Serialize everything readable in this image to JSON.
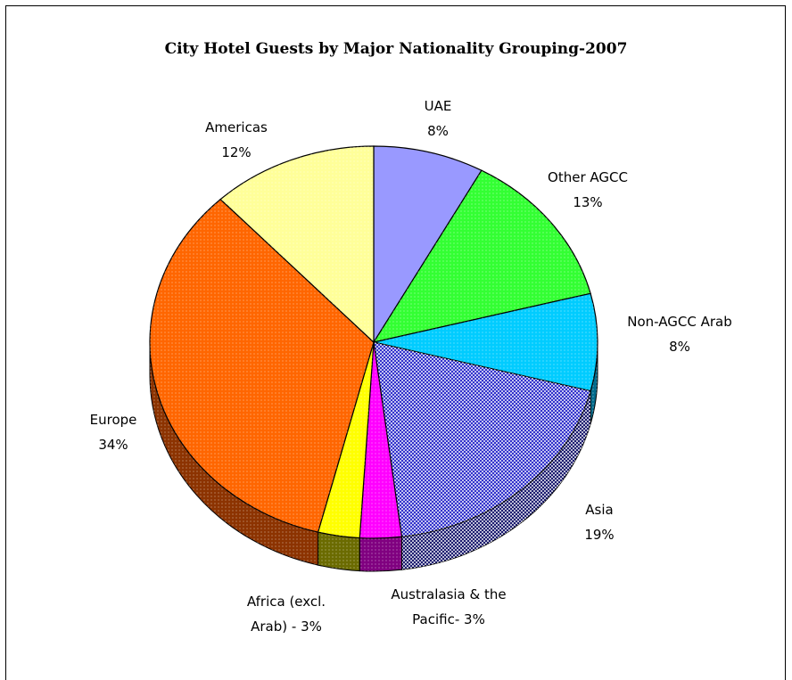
{
  "chart_data": {
    "type": "pie",
    "title": "City Hotel Guests by Major Nationality Grouping-2007",
    "slices": [
      {
        "label_lines": [
          "UAE",
          "8%"
        ],
        "value": 8,
        "color": "#9999ff",
        "side_color": "#4a4a8c"
      },
      {
        "label_lines": [
          "Other AGCC",
          "13%"
        ],
        "value": 13,
        "color": "#33ff33",
        "side_color": "#1a8c1a"
      },
      {
        "label_lines": [
          "Non-AGCC Arab",
          "8%"
        ],
        "value": 8,
        "color": "#00ccff",
        "side_color": "#006b8c"
      },
      {
        "label_lines": [
          "Asia",
          "19%"
        ],
        "value": 19,
        "color": "#3333cc",
        "side_color": "#1c1c70"
      },
      {
        "label_lines": [
          "Australasia & the",
          "Pacific- 3%"
        ],
        "value": 3,
        "color": "#ff00ff",
        "side_color": "#800080"
      },
      {
        "label_lines": [
          "Africa (excl.",
          "Arab) - 3%"
        ],
        "value": 3,
        "color": "#ffff00",
        "side_color": "#6b6b00"
      },
      {
        "label_lines": [
          "Europe",
          "34%"
        ],
        "value": 34,
        "color": "#ff6600",
        "side_color": "#8c3300"
      },
      {
        "label_lines": [
          "Americas",
          "12%"
        ],
        "value": 12,
        "color": "#ffff99",
        "side_color": "#8c8c4a"
      }
    ]
  }
}
